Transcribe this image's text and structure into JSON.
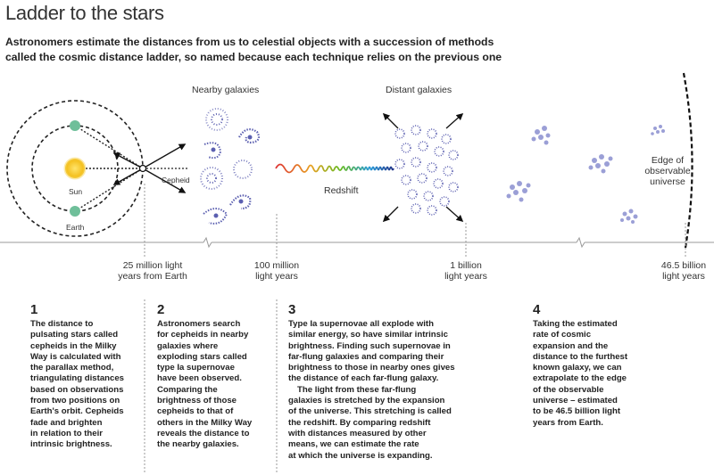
{
  "header": {
    "title": "Ladder to the stars",
    "subtitle_line1": "Astronomers estimate the distances from us to celestial objects with a succession of methods",
    "subtitle_line2": "called the cosmic distance ladder, so named because each technique relies on the previous one"
  },
  "diagram": {
    "nearby_label": "Nearby galaxies",
    "distant_label": "Distant galaxies",
    "sun_label": "Sun",
    "earth_label": "Earth",
    "cepheid_label": "Cepheid",
    "redshift_label": "Redshift",
    "edge_line1": "Edge of",
    "edge_line2": "observable",
    "edge_line3": "universe",
    "colors": {
      "sun": "#f2c21b",
      "earth": "#6fbf9a",
      "galaxy": "#5b5fb0"
    }
  },
  "distances": [
    {
      "line1": "25 million light",
      "line2": "years from Earth"
    },
    {
      "line1": "100 million",
      "line2": "light years"
    },
    {
      "line1": "1 billion",
      "line2": "light years"
    },
    {
      "line1": "46.5 billion",
      "line2": "light years"
    }
  ],
  "steps": [
    {
      "num": "1",
      "lines": [
        "The distance to",
        "pulsating stars called",
        "cepheids in the Milky",
        "Way is calculated with",
        "the parallax method,",
        "triangulating distances",
        "based on observations",
        "from two positions on",
        "Earth's orbit. Cepheids",
        "fade and brighten",
        "in relation to their",
        "intrinsic brightness."
      ]
    },
    {
      "num": "2",
      "lines": [
        "Astronomers search",
        "for cepheids in nearby",
        "galaxies where",
        "exploding stars called",
        "type Ia supernovae",
        "have been observed.",
        "Comparing the",
        "brightness of those",
        "cepheids to that of",
        "others in the Milky Way",
        "reveals the distance to",
        "the nearby galaxies."
      ]
    },
    {
      "num": "3",
      "lines": [
        "Type Ia supernovae all explode with",
        "similar energy, so have similar intrinsic",
        "brightness. Finding such supernovae in",
        "far-flung galaxies and comparing their",
        "brightness to those in nearby ones gives",
        "the distance of each far-flung galaxy."
      ],
      "lines2": [
        "The light from these far-flung",
        "galaxies is stretched by the expansion",
        "of the universe. This stretching is called",
        "the redshift. By comparing redshift",
        "with distances measured by other",
        "means, we can estimate the rate",
        "at which the universe is expanding."
      ]
    },
    {
      "num": "4",
      "lines": [
        "Taking the estimated",
        "rate of cosmic",
        "expansion and the",
        "distance to the furthest",
        "known galaxy, we can",
        "extrapolate to the edge",
        "of the observable",
        "universe – estimated",
        "to be 46.5 billion light",
        "years from Earth."
      ]
    }
  ]
}
